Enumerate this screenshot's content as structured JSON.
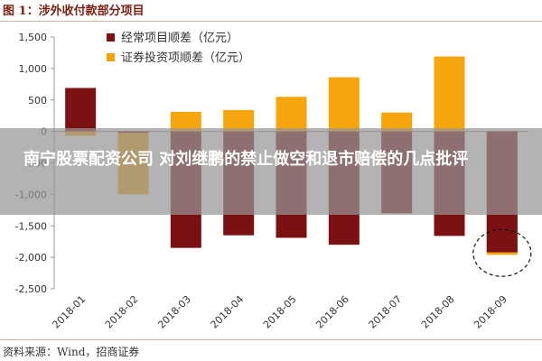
{
  "figure": {
    "title": "图 1：涉外收付款部分项目",
    "source": "资料来源：Wind，招商证券"
  },
  "overlay": {
    "headline": "南宁股票配资公司 对刘继鹏的禁止做空和退市赔偿的几点批评"
  },
  "colors": {
    "series_current": "#7b1113",
    "series_securities": "#f5a000",
    "background": "#ffffff"
  },
  "chart_data": {
    "type": "bar",
    "title": "涉外收付款部分项目",
    "xlabel": "",
    "ylabel": "",
    "ylim": [
      -2500,
      1500
    ],
    "yticks": [
      1500,
      1000,
      500,
      0,
      -500,
      -1000,
      -1500,
      -2000,
      -2500
    ],
    "ytick_labels": [
      "1,500",
      "1,000",
      "500",
      "0",
      "-500",
      "-1,000",
      "-1,500",
      "-2,000",
      "-2,500"
    ],
    "categories": [
      "2018-01",
      "2018-02",
      "2018-03",
      "2018-04",
      "2018-05",
      "2018-06",
      "2018-07",
      "2018-08",
      "2018-09"
    ],
    "series": [
      {
        "name": "经常项目顺差（亿元）",
        "color": "#7b1113",
        "values": [
          690,
          -20,
          -1850,
          -1650,
          -1690,
          -1800,
          -1300,
          -1660,
          -1920
        ]
      },
      {
        "name": "证券投资项顺差（亿元）",
        "color": "#f5a000",
        "values": [
          -70,
          -1000,
          310,
          340,
          550,
          860,
          300,
          1190,
          -1960
        ]
      }
    ],
    "legend": "top-left",
    "grid": false,
    "annotation": "dashed circle around 2018-09"
  }
}
